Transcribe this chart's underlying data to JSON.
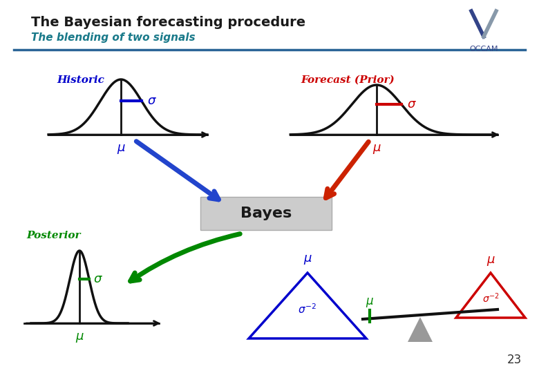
{
  "title": "The Bayesian forecasting procedure",
  "subtitle": "The blending of two signals",
  "title_color": "#1a1a1a",
  "subtitle_color": "#1a7a8a",
  "historic_label": "Historic",
  "forecast_label": "Forecast (Prior)",
  "bayes_label": "Bayes",
  "posterior_label": "Posterior",
  "label_color_historic": "#0000cc",
  "label_color_forecast": "#cc0000",
  "label_color_posterior": "#008800",
  "curve_color": "#111111",
  "sigma_color_historic": "#0000cc",
  "sigma_color_forecast": "#cc0000",
  "sigma_color_posterior": "#008800",
  "background_color": "#ffffff",
  "separator_color": "#2a6496",
  "page_number": "23",
  "blue_arrow_color": "#2244cc",
  "red_arrow_color": "#cc2200",
  "green_arrow_color": "#008800",
  "bayes_box_color": "#cccccc",
  "blue_tri_color": "#0000cc",
  "red_tri_color": "#cc0000",
  "grey_fulcrum_color": "#999999"
}
